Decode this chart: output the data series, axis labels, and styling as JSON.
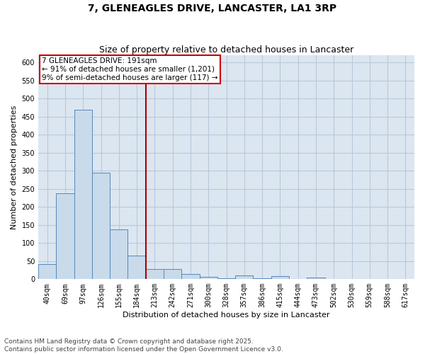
{
  "title": "7, GLENEAGLES DRIVE, LANCASTER, LA1 3RP",
  "subtitle": "Size of property relative to detached houses in Lancaster",
  "xlabel": "Distribution of detached houses by size in Lancaster",
  "ylabel": "Number of detached properties",
  "categories": [
    "40sqm",
    "69sqm",
    "97sqm",
    "126sqm",
    "155sqm",
    "184sqm",
    "213sqm",
    "242sqm",
    "271sqm",
    "300sqm",
    "328sqm",
    "357sqm",
    "386sqm",
    "415sqm",
    "444sqm",
    "473sqm",
    "502sqm",
    "530sqm",
    "559sqm",
    "588sqm",
    "617sqm"
  ],
  "values": [
    42,
    238,
    470,
    295,
    138,
    65,
    28,
    28,
    15,
    6,
    2,
    10,
    2,
    8,
    1,
    5,
    1,
    1,
    0,
    0,
    1
  ],
  "bar_color": "#c9daea",
  "bar_edge_color": "#5588bb",
  "property_line_label": "7 GLENEAGLES DRIVE: 191sqm",
  "annotation_line1": "← 91% of detached houses are smaller (1,201)",
  "annotation_line2": "9% of semi-detached houses are larger (117) →",
  "vline_color": "#aa0000",
  "vline_x_index": 5.5,
  "ylim": [
    0,
    620
  ],
  "yticks": [
    0,
    50,
    100,
    150,
    200,
    250,
    300,
    350,
    400,
    450,
    500,
    550,
    600
  ],
  "grid_color": "#b8c8dc",
  "bg_color": "#dce6f0",
  "footer1": "Contains HM Land Registry data © Crown copyright and database right 2025.",
  "footer2": "Contains public sector information licensed under the Open Government Licence v3.0.",
  "annotation_box_color": "#cc0000",
  "title_fontsize": 10,
  "subtitle_fontsize": 9,
  "axis_label_fontsize": 8,
  "tick_fontsize": 7,
  "footer_fontsize": 6.5,
  "annotation_fontsize": 7.5
}
